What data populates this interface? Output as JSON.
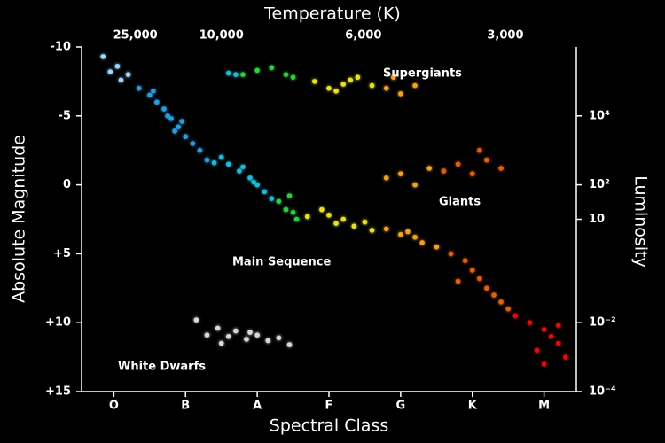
{
  "chart_data": {
    "type": "scatter",
    "x_axis_top_label": "Temperature (K)",
    "x_label": "Spectral Class",
    "y_label": "Absolute Magnitude",
    "y2_label": "Luminosity",
    "xlim": [
      -0.45,
      6.45
    ],
    "xticks": [
      {
        "value": 0,
        "label": "O"
      },
      {
        "value": 1,
        "label": "B"
      },
      {
        "value": 2,
        "label": "A"
      },
      {
        "value": 3,
        "label": "F"
      },
      {
        "value": 4,
        "label": "G"
      },
      {
        "value": 5,
        "label": "K"
      },
      {
        "value": 6,
        "label": "M"
      }
    ],
    "x2ticks": [
      {
        "value": 25000,
        "label": "25,000",
        "class_position": 0.3
      },
      {
        "value": 10000,
        "label": "10,000",
        "class_position": 1.5
      },
      {
        "value": 6000,
        "label": "6,000",
        "class_position": 3.48
      },
      {
        "value": 3000,
        "label": "3,000",
        "class_position": 5.46
      }
    ],
    "ylim": [
      -10,
      15
    ],
    "y_inverted": true,
    "yticks": [
      -10,
      -5,
      0,
      {
        "value": 5,
        "label": "+5"
      },
      {
        "value": 10,
        "label": "+10"
      },
      {
        "value": 15,
        "label": "+15"
      }
    ],
    "y2_log": true,
    "y2lim": [
      1000000,
      0.0001
    ],
    "y2ticks": [
      {
        "value": 10000,
        "label": "10⁴"
      },
      {
        "value": 100,
        "label": "10²"
      },
      10,
      {
        "value": 0.01,
        "label": "10⁻²"
      },
      {
        "value": 0.0001,
        "label": "10⁻⁴"
      }
    ],
    "annotations": [
      "Supergiants",
      "Giants",
      "Main Sequence",
      "White Dwarfs"
    ],
    "series": [
      {
        "color": "#9ad6ff",
        "x": [
          -0.15,
          0.05,
          0.2,
          0.1,
          -0.05
        ],
        "values": [
          -9.3,
          -8.6,
          -8.0,
          -7.6,
          -8.2
        ]
      },
      {
        "color": "#2a9be0",
        "x": [
          0.35,
          0.5,
          0.6,
          0.7,
          0.8,
          0.9,
          1.0,
          1.1,
          0.75,
          0.95,
          1.2,
          1.3,
          0.55,
          0.85
        ],
        "values": [
          -7.0,
          -6.5,
          -6.0,
          -5.5,
          -4.8,
          -4.2,
          -3.5,
          -3.0,
          -5.0,
          -4.6,
          -2.5,
          -1.8,
          -6.8,
          -3.9
        ]
      },
      {
        "color": "#20b8d8",
        "x": [
          1.5,
          1.6,
          1.75,
          1.9,
          2.0,
          2.1,
          1.8,
          2.2,
          1.4,
          1.95,
          1.7,
          1.6
        ],
        "values": [
          -2.0,
          -1.5,
          -1.0,
          -0.5,
          0,
          0.5,
          -1.3,
          1.0,
          -1.6,
          -0.2,
          -8.0,
          -8.1
        ]
      },
      {
        "color": "#30cc40",
        "x": [
          2.3,
          2.4,
          2.5,
          2.55,
          2.45,
          1.8,
          2.0,
          2.2,
          2.4,
          2.5
        ],
        "values": [
          1.2,
          1.8,
          2.0,
          2.5,
          0.8,
          -8.0,
          -8.3,
          -8.5,
          -8.0,
          -7.8
        ]
      },
      {
        "color": "#e8e020",
        "x": [
          2.7,
          2.9,
          3.0,
          3.1,
          3.2,
          3.35,
          3.5,
          3.6,
          2.8,
          3.0,
          3.2,
          3.4,
          3.6,
          3.1,
          3.3
        ],
        "values": [
          2.3,
          1.8,
          2.2,
          2.8,
          2.5,
          3.0,
          2.7,
          3.3,
          -7.5,
          -7.0,
          -7.3,
          -7.8,
          -7.2,
          -6.8,
          -7.6
        ]
      },
      {
        "color": "#f0a020",
        "x": [
          3.8,
          4.0,
          4.2,
          4.3,
          4.5,
          4.1,
          3.8,
          4.0,
          4.2,
          3.9,
          3.8,
          4.0,
          4.2,
          4.4
        ],
        "values": [
          3.2,
          3.6,
          3.8,
          4.2,
          4.5,
          3.4,
          -7.0,
          -6.6,
          -7.2,
          -7.8,
          -0.5,
          -0.8,
          0,
          -1.2
        ]
      },
      {
        "color": "#e06010",
        "x": [
          4.7,
          4.9,
          5.0,
          5.1,
          5.2,
          5.3,
          5.4,
          5.5,
          4.8,
          4.6,
          4.8,
          5.0,
          5.2,
          5.4,
          5.1
        ],
        "values": [
          5.0,
          5.5,
          6.2,
          6.8,
          7.5,
          8.0,
          8.5,
          9.0,
          7.0,
          -1.0,
          -1.5,
          -0.8,
          -1.8,
          -1.2,
          -2.5
        ]
      },
      {
        "color": "#e01010",
        "x": [
          5.6,
          5.8,
          6.0,
          6.1,
          6.2,
          5.9,
          6.3,
          6.0,
          6.2
        ],
        "values": [
          9.5,
          10.0,
          10.5,
          11.0,
          11.5,
          12.0,
          12.5,
          13.0,
          10.2
        ]
      },
      {
        "color": "#d8d8d8",
        "x": [
          1.15,
          1.3,
          1.45,
          1.6,
          1.7,
          1.85,
          2.0,
          2.15,
          2.3,
          2.45,
          1.5,
          1.9
        ],
        "values": [
          9.8,
          10.9,
          10.4,
          11.0,
          10.6,
          11.2,
          10.9,
          11.3,
          11.1,
          11.6,
          11.5,
          10.7
        ]
      }
    ]
  }
}
